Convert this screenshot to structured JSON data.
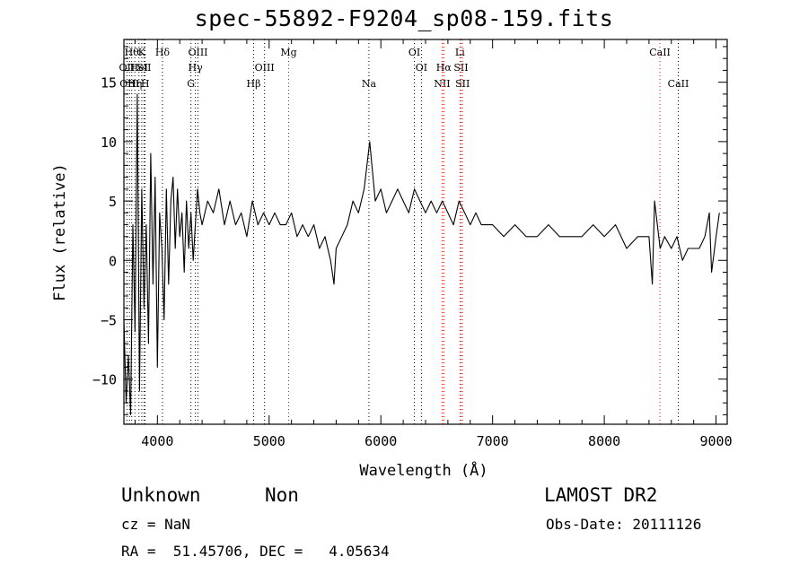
{
  "chart_data": {
    "type": "line",
    "title": "spec-55892-F9204_sp08-159.fits",
    "xlabel": "Wavelength (Å)",
    "ylabel": "Flux (relative)",
    "xlim": [
      3700,
      9100
    ],
    "ylim": [
      -13.8,
      18.6
    ],
    "xticks": [
      {
        "value": 4000,
        "label": "4000"
      },
      {
        "value": 5000,
        "label": "5000"
      },
      {
        "value": 6000,
        "label": "6000"
      },
      {
        "value": 7000,
        "label": "7000"
      },
      {
        "value": 8000,
        "label": "8000"
      },
      {
        "value": 9000,
        "label": "9000"
      }
    ],
    "yticks": [
      {
        "value": -10,
        "label": "−10"
      },
      {
        "value": -5,
        "label": "−5"
      },
      {
        "value": 0,
        "label": "0"
      },
      {
        "value": 5,
        "label": "5"
      },
      {
        "value": 10,
        "label": "10"
      },
      {
        "value": 15,
        "label": "15"
      }
    ],
    "series": [
      {
        "color": "#000000",
        "x": [
          3700,
          3720,
          3740,
          3760,
          3780,
          3800,
          3820,
          3840,
          3860,
          3880,
          3900,
          3920,
          3940,
          3960,
          3980,
          4000,
          4020,
          4040,
          4060,
          4080,
          4100,
          4120,
          4140,
          4160,
          4180,
          4200,
          4220,
          4240,
          4260,
          4280,
          4300,
          4320,
          4340,
          4360,
          4380,
          4400,
          4450,
          4500,
          4550,
          4600,
          4650,
          4700,
          4750,
          4800,
          4850,
          4900,
          4950,
          5000,
          5050,
          5100,
          5150,
          5200,
          5250,
          5300,
          5350,
          5400,
          5450,
          5500,
          5550,
          5580,
          5600,
          5650,
          5700,
          5750,
          5800,
          5850,
          5900,
          5930,
          5950,
          6000,
          6050,
          6100,
          6150,
          6200,
          6250,
          6300,
          6350,
          6400,
          6450,
          6500,
          6550,
          6600,
          6650,
          6700,
          6750,
          6800,
          6850,
          6900,
          6950,
          7000,
          7100,
          7200,
          7300,
          7400,
          7500,
          7600,
          7700,
          7800,
          7900,
          8000,
          8100,
          8200,
          8300,
          8400,
          8430,
          8450,
          8500,
          8540,
          8600,
          8650,
          8700,
          8750,
          8800,
          8850,
          8900,
          8940,
          8960,
          9000,
          9030
        ],
        "y": [
          -5,
          -12,
          -8,
          -13,
          3,
          -6,
          14,
          -11,
          6,
          -4,
          3,
          -7,
          9,
          -2,
          7,
          -9,
          4,
          1,
          -5,
          6,
          -2,
          5,
          7,
          1,
          6,
          2,
          4,
          -1,
          5,
          1,
          4,
          0,
          3,
          6,
          4,
          3,
          5,
          4,
          6,
          3,
          5,
          3,
          4,
          2,
          5,
          3,
          4,
          3,
          4,
          3,
          3,
          4,
          2,
          3,
          2,
          3,
          1,
          2,
          0,
          -2,
          1,
          2,
          3,
          5,
          4,
          6,
          10,
          7,
          5,
          6,
          4,
          5,
          6,
          5,
          4,
          6,
          5,
          4,
          5,
          4,
          5,
          4,
          3,
          5,
          4,
          3,
          4,
          3,
          3,
          3,
          2,
          3,
          2,
          2,
          3,
          2,
          2,
          2,
          3,
          2,
          3,
          1,
          2,
          2,
          -2,
          5,
          1,
          2,
          1,
          2,
          0,
          1,
          1,
          1,
          2,
          4,
          -1,
          2,
          4
        ]
      }
    ],
    "line_markers": [
      {
        "wl": 3727,
        "tier": 2,
        "label": "OII",
        "color": "#000000"
      },
      {
        "wl": 3750,
        "tier": 3,
        "label": "OIII",
        "color": "#000000"
      },
      {
        "wl": 3770,
        "tier": 1,
        "label": "Hθ",
        "color": "#000000"
      },
      {
        "wl": 3798,
        "tier": 3,
        "label": "Hη",
        "color": "#000000"
      },
      {
        "wl": 3835,
        "tier": 2,
        "label": "HeI",
        "color": "#000000"
      },
      {
        "wl": 3860,
        "tier": 1,
        "label": "K",
        "color": "#000000"
      },
      {
        "wl": 3890,
        "tier": 3,
        "label": "H",
        "color": "#000000"
      },
      {
        "wl": 3880,
        "tier": 2,
        "label": "SII",
        "color": "#000000"
      },
      {
        "wl": 4045,
        "tier": 1,
        "label": "Hδ",
        "color": "#000000"
      },
      {
        "wl": 4300,
        "tier": 3,
        "label": "G",
        "color": "#000000"
      },
      {
        "wl": 4340,
        "tier": 2,
        "label": "Hγ",
        "color": "#000000"
      },
      {
        "wl": 4363,
        "tier": 1,
        "label": "OIII",
        "color": "#000000"
      },
      {
        "wl": 4861,
        "tier": 3,
        "label": "Hβ",
        "color": "#000000"
      },
      {
        "wl": 4959,
        "tier": 2,
        "label": "OIII",
        "color": "#000000"
      },
      {
        "wl": 5175,
        "tier": 1,
        "label": "Mg",
        "color": "#ff0000"
      },
      {
        "wl": 5893,
        "tier": 3,
        "label": "Na",
        "color": "#000000"
      },
      {
        "wl": 6300,
        "tier": 1,
        "label": "OI",
        "color": "#000000"
      },
      {
        "wl": 6363,
        "tier": 2,
        "label": "OI",
        "color": "#000000"
      },
      {
        "wl": 6548,
        "tier": 3,
        "label": "NII",
        "color": "#ff0000"
      },
      {
        "wl": 6563,
        "tier": 2,
        "label": "Hα",
        "color": "#ff0000"
      },
      {
        "wl": 6708,
        "tier": 1,
        "label": "Li",
        "color": "#ff0000"
      },
      {
        "wl": 6717,
        "tier": 2,
        "label": "SII",
        "color": "#ff0000"
      },
      {
        "wl": 6731,
        "tier": 3,
        "label": "SII",
        "color": "#ff0000"
      },
      {
        "wl": 8498,
        "tier": 1,
        "label": "CaII",
        "color": "#ff0000"
      },
      {
        "wl": 8662,
        "tier": 3,
        "label": "CaII",
        "color": "#000000"
      }
    ]
  },
  "info": {
    "class": "Unknown",
    "subclass": "Non",
    "survey": "LAMOST DR2",
    "cz": "cz = NaN",
    "obs_date": "Obs-Date: 20111126",
    "radec": "RA =  51.45706, DEC =   4.05634"
  }
}
